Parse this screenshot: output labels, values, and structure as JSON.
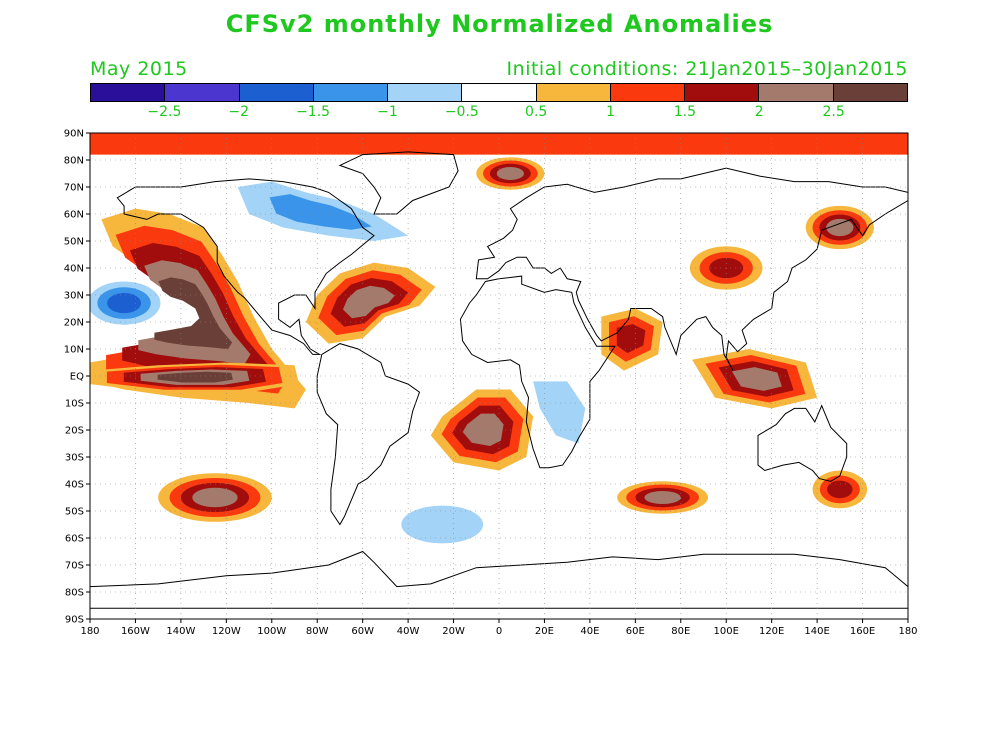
{
  "title": "CFSv2 monthly Normalized Anomalies",
  "subtitle_left": "May 2015",
  "subtitle_right": "Initial conditions: 21Jan2015–30Jan2015",
  "legend": {
    "colors": [
      "#2a0f9a",
      "#4b37d0",
      "#1c5fd0",
      "#3a95ea",
      "#a3d4f7",
      "#ffffff",
      "#f7b63c",
      "#fa3a0e",
      "#a10c0c",
      "#a47a6c",
      "#6a3f37"
    ],
    "labels": [
      "−2.5",
      "−2",
      "−1.5",
      "−1",
      "−0.5",
      "0.5",
      "1",
      "1.5",
      "2",
      "2.5"
    ]
  },
  "axes": {
    "lat_labels": [
      "90N",
      "80N",
      "70N",
      "60N",
      "50N",
      "40N",
      "30N",
      "20N",
      "10N",
      "EQ",
      "10S",
      "20S",
      "30S",
      "40S",
      "50S",
      "60S",
      "70S",
      "80S",
      "90S"
    ],
    "lon_labels": [
      "180",
      "160W",
      "140W",
      "120W",
      "100W",
      "80W",
      "60W",
      "40W",
      "20W",
      "0",
      "20E",
      "40E",
      "60E",
      "80E",
      "100E",
      "120E",
      "140E",
      "160E",
      "180"
    ]
  },
  "anomalies": [
    {
      "region": "north-polar band",
      "value": 1.2
    },
    {
      "region": "northeast pacific",
      "value": 2.8
    },
    {
      "region": "eastern tropical pacific",
      "value": 2.6
    },
    {
      "region": "north pacific subtropics",
      "value": -1.5
    },
    {
      "region": "north atlantic",
      "value": 2.2
    },
    {
      "region": "northern canada",
      "value": -1.4
    },
    {
      "region": "barents sea",
      "value": 2.4
    },
    {
      "region": "south atlantic",
      "value": 2.0
    },
    {
      "region": "southern africa",
      "value": -0.8
    },
    {
      "region": "arabian sea",
      "value": 1.8
    },
    {
      "region": "maritime continent",
      "value": 2.0
    },
    {
      "region": "central asia",
      "value": 1.8
    },
    {
      "region": "east asia",
      "value": 2.4
    },
    {
      "region": "south pacific",
      "value": 2.1
    },
    {
      "region": "southern indian ocean",
      "value": 2.2
    },
    {
      "region": "southern ocean atlantic sector",
      "value": -0.8
    },
    {
      "region": "tasman sea",
      "value": 1.6
    }
  ]
}
